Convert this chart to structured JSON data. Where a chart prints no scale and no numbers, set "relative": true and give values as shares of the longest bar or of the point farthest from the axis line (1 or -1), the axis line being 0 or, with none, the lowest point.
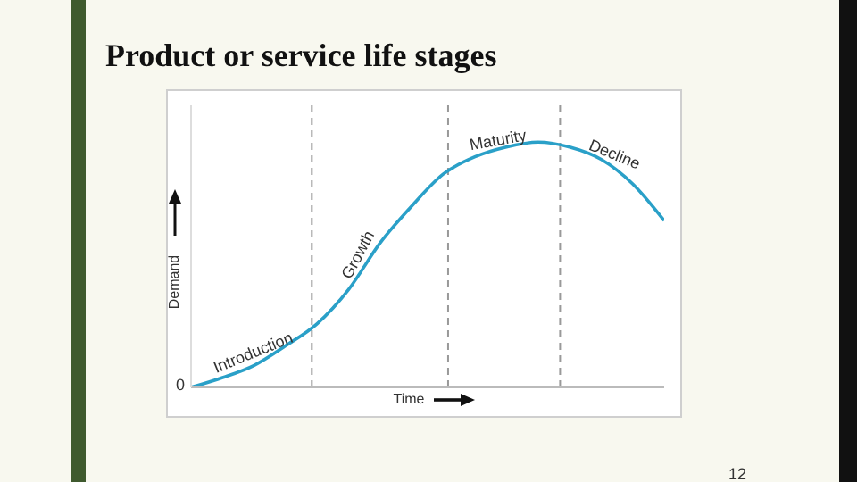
{
  "chart_data": {
    "type": "line",
    "title": "Product or service life stages",
    "xlabel": "Time",
    "ylabel": "Demand",
    "relative": true,
    "categories": [
      null,
      null,
      null,
      null,
      null,
      null,
      null,
      null,
      null,
      null,
      null,
      null,
      null,
      null,
      null,
      null
    ],
    "series": [
      {
        "color": "#2aa0c8",
        "values": [
          0,
          0.04,
          0.09,
          0.17,
          0.26,
          0.4,
          0.59,
          0.74,
          0.87,
          0.94,
          0.98,
          1,
          0.98,
          0.93,
          0.83,
          0.68
        ]
      }
    ],
    "marker": "none",
    "line_style": "solid",
    "annotations": [
      "Introduction",
      "Growth",
      "Maturity",
      "Decline",
      "12",
      "0"
    ]
  }
}
